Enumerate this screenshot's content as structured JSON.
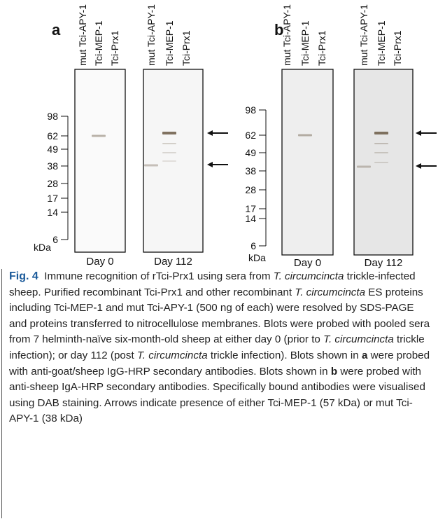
{
  "panels": [
    {
      "label": "a",
      "lanes": [
        "mut Tci-APY-1",
        "Tci-MEP-1",
        "Tci-Prx1"
      ],
      "markers": [
        98,
        62,
        49,
        38,
        28,
        17,
        14,
        6
      ],
      "unit": "kDa",
      "blots": [
        "Day 0",
        "Day 112"
      ]
    },
    {
      "label": "b",
      "lanes": [
        "mut Tci-APY-1",
        "Tci-MEP-1",
        "Tci-Prx1"
      ],
      "markers": [
        98,
        62,
        49,
        38,
        28,
        17,
        14,
        6
      ],
      "unit": "kDa",
      "blots": [
        "Day 0",
        "Day 112"
      ]
    }
  ],
  "caption": {
    "label": "Fig. 4",
    "segments": [
      "Immune recognition of rTci-Prx1 using sera from ",
      "T. circumcincta",
      " trickle-infected sheep. Purified recombinant Tci-Prx1 and other recombinant ",
      "T. circumcincta",
      " ES proteins including Tci-MEP-1 and mut Tci-APY-1 (500 ng of each) were resolved by SDS-PAGE and proteins transferred to nitrocellulose membranes. Blots were probed with pooled sera from 7 helminth-naïve six-month-old sheep at either day 0 (prior to ",
      "T. circumcincta",
      " trickle infection); or day 112 (post ",
      "T. circumcincta",
      " trickle infection). Blots shown in ",
      "a",
      " were probed with anti-goat/sheep IgG-HRP secondary antibodies. Blots shown in ",
      "b",
      " were probed with anti-sheep IgA-HRP secondary antibodies. Specifically bound antibodies were visualised using DAB staining. Arrows indicate presence of either Tci-MEP-1 (57 kDa) or mut Tci-APY-1 (38 kDa)"
    ]
  }
}
